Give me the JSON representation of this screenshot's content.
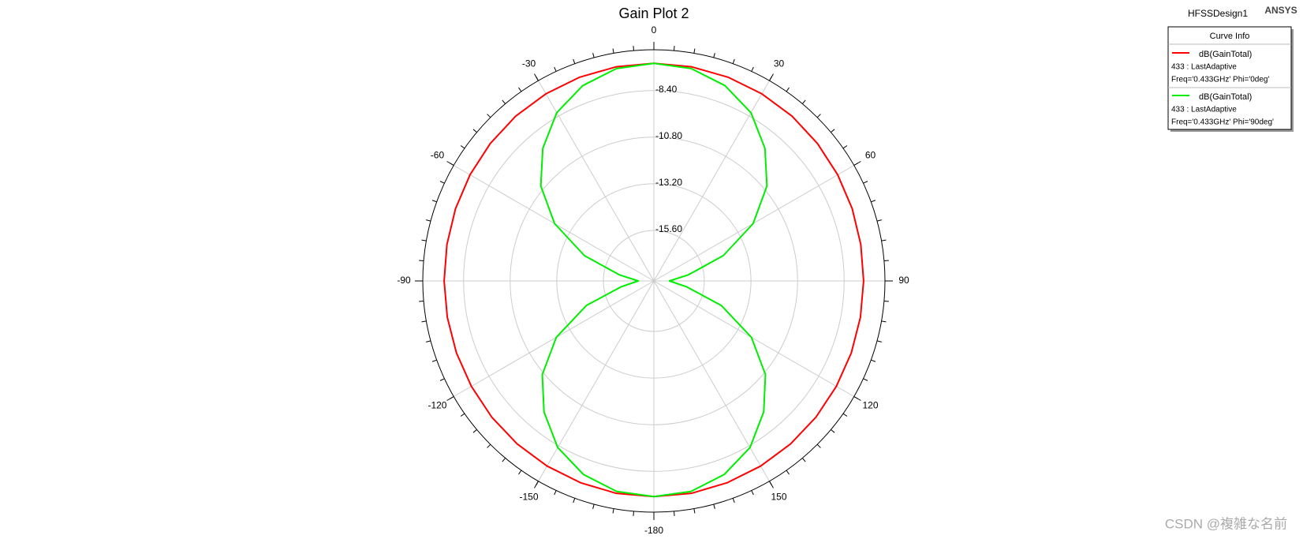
{
  "chart_data": {
    "type": "polar",
    "title": "Gain Plot 2",
    "design": "HFSSDesign1",
    "brand": "ANSYS",
    "legend_title": "Curve Info",
    "watermark": "CSDN @複雑な名前",
    "x": [
      -180,
      -170,
      -160,
      -150,
      -140,
      -130,
      -120,
      -110,
      -100,
      -90,
      -80,
      -70,
      -60,
      -50,
      -40,
      -30,
      -20,
      -10,
      0,
      10,
      20,
      30,
      40,
      50,
      60,
      70,
      80,
      90,
      100,
      110,
      120,
      130,
      140,
      150,
      160,
      170,
      180
    ],
    "series": [
      {
        "name": "dB(GainTotal)",
        "setup": "433 : LastAdaptive",
        "params": "Freq='0.433GHz' Phi='0deg'",
        "color": "#ff0000",
        "values": [
          -7.1,
          -7.1,
          -7.15,
          -7.2,
          -7.25,
          -7.3,
          -7.35,
          -7.38,
          -7.4,
          -7.4,
          -7.38,
          -7.33,
          -7.27,
          -7.2,
          -7.13,
          -7.08,
          -7.04,
          -7.01,
          -7.0,
          -7.01,
          -7.04,
          -7.08,
          -7.13,
          -7.2,
          -7.27,
          -7.33,
          -7.38,
          -7.4,
          -7.4,
          -7.38,
          -7.35,
          -7.3,
          -7.25,
          -7.2,
          -7.15,
          -7.1,
          -7.1
        ]
      },
      {
        "name": "dB(GainTotal)",
        "setup": "433 : LastAdaptive",
        "params": "Freq='0.433GHz' Phi='90deg'",
        "color": "#00ee00",
        "values": [
          -7.1,
          -7.2,
          -7.6,
          -8.3,
          -9.4,
          -10.7,
          -12.4,
          -14.5,
          -16.5,
          -17.4,
          -16.4,
          -14.4,
          -12.3,
          -10.6,
          -9.3,
          -8.2,
          -7.5,
          -7.1,
          -7.0,
          -7.1,
          -7.5,
          -8.2,
          -9.3,
          -10.6,
          -12.3,
          -14.4,
          -16.4,
          -17.4,
          -16.5,
          -14.5,
          -12.4,
          -10.7,
          -9.4,
          -8.3,
          -7.6,
          -7.2,
          -7.1
        ]
      }
    ],
    "ylim": [
      -18.2,
      -6.3
    ],
    "yticks": [
      {
        "value": -15.6,
        "label": "-15.60"
      },
      {
        "value": -13.2,
        "label": "-13.20"
      },
      {
        "value": -10.8,
        "label": "-10.80"
      },
      {
        "value": -8.4,
        "label": "-8.40"
      }
    ],
    "xticks": [
      0,
      30,
      60,
      90,
      120,
      150,
      -180,
      -150,
      -120,
      -90,
      -60,
      -30
    ],
    "grid": true
  }
}
